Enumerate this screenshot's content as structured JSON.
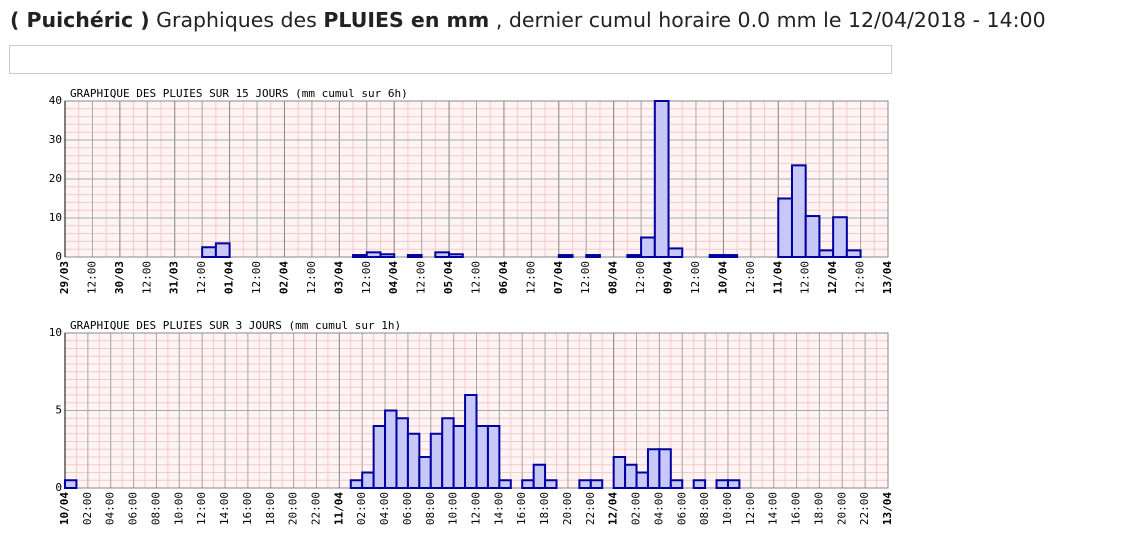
{
  "header": {
    "place": "( Puichéric )",
    "text1": "Graphiques des",
    "bold": "PLUIES en mm",
    "text2": ", dernier cumul horaire 0.0 mm le 12/04/2018 - 14:00"
  },
  "chart_data": [
    {
      "type": "bar",
      "title": "GRAPHIQUE DES PLUIES SUR 15 JOURS (mm cumul sur 6h)",
      "color": "#c8c8f8",
      "edge_color": "#0000a0",
      "values": [
        0,
        0,
        0,
        0,
        0,
        0,
        0,
        0,
        0,
        0,
        2.5,
        3.5,
        0,
        0,
        0,
        0,
        0,
        0,
        0,
        0,
        0,
        0.5,
        1.2,
        0.7,
        0,
        0.5,
        0,
        1.2,
        0.7,
        0,
        0,
        0,
        0,
        0,
        0,
        0,
        0.5,
        0,
        0.5,
        0,
        0,
        0.5,
        5,
        40,
        2.2,
        0,
        0,
        0.5,
        0.5,
        0,
        0,
        0,
        15,
        23.5,
        10.5,
        1.7,
        10.2,
        1.7,
        0,
        null
      ],
      "xtick_labels": [
        "29/03",
        "12:00",
        "30/03",
        "12:00",
        "31/03",
        "12:00",
        "01/04",
        "12:00",
        "02/04",
        "12:00",
        "03/04",
        "12:00",
        "04/04",
        "12:00",
        "05/04",
        "12:00",
        "06/04",
        "12:00",
        "07/04",
        "12:00",
        "08/04",
        "12:00",
        "09/04",
        "12:00",
        "10/04",
        "12:00",
        "11/04",
        "12:00",
        "12/04",
        "12:00",
        "13/04"
      ],
      "major_every": 2,
      "ylim": [
        0,
        40
      ],
      "yticks": [
        0,
        10,
        20,
        30,
        40
      ],
      "grid": true
    },
    {
      "type": "bar",
      "title": "GRAPHIQUE DES PLUIES SUR 3 JOURS (mm cumul sur 1h)",
      "color": "#c8c8f8",
      "edge_color": "#0000a0",
      "values": [
        0.5,
        0,
        0,
        0,
        0,
        0,
        0,
        0,
        0,
        0,
        0,
        0,
        0,
        0,
        0,
        0,
        0,
        0,
        0,
        0,
        0,
        0,
        0,
        0,
        0,
        0.5,
        1,
        4,
        5,
        4.5,
        3.5,
        2,
        3.5,
        4.5,
        4,
        6,
        4,
        4,
        0.5,
        0,
        0.5,
        1.5,
        0.5,
        0,
        0,
        0.5,
        0.5,
        0,
        2,
        1.5,
        1,
        2.5,
        2.5,
        0.5,
        0,
        0.5,
        0,
        0.5,
        0.5,
        0,
        0,
        0,
        null,
        null,
        null,
        null,
        null,
        null,
        null,
        null,
        null,
        null
      ],
      "xtick_labels": [
        "10/04",
        "02:00",
        "04:00",
        "06:00",
        "08:00",
        "10:00",
        "12:00",
        "14:00",
        "16:00",
        "18:00",
        "20:00",
        "22:00",
        "11/04",
        "02:00",
        "04:00",
        "06:00",
        "08:00",
        "10:00",
        "12:00",
        "14:00",
        "16:00",
        "18:00",
        "20:00",
        "22:00",
        "12/04",
        "02:00",
        "04:00",
        "06:00",
        "08:00",
        "10:00",
        "12:00",
        "14:00",
        "16:00",
        "18:00",
        "20:00",
        "22:00",
        "13/04"
      ],
      "major_every": 12,
      "ylim": [
        0,
        10
      ],
      "yticks": [
        0,
        5,
        10
      ],
      "grid": true
    }
  ]
}
